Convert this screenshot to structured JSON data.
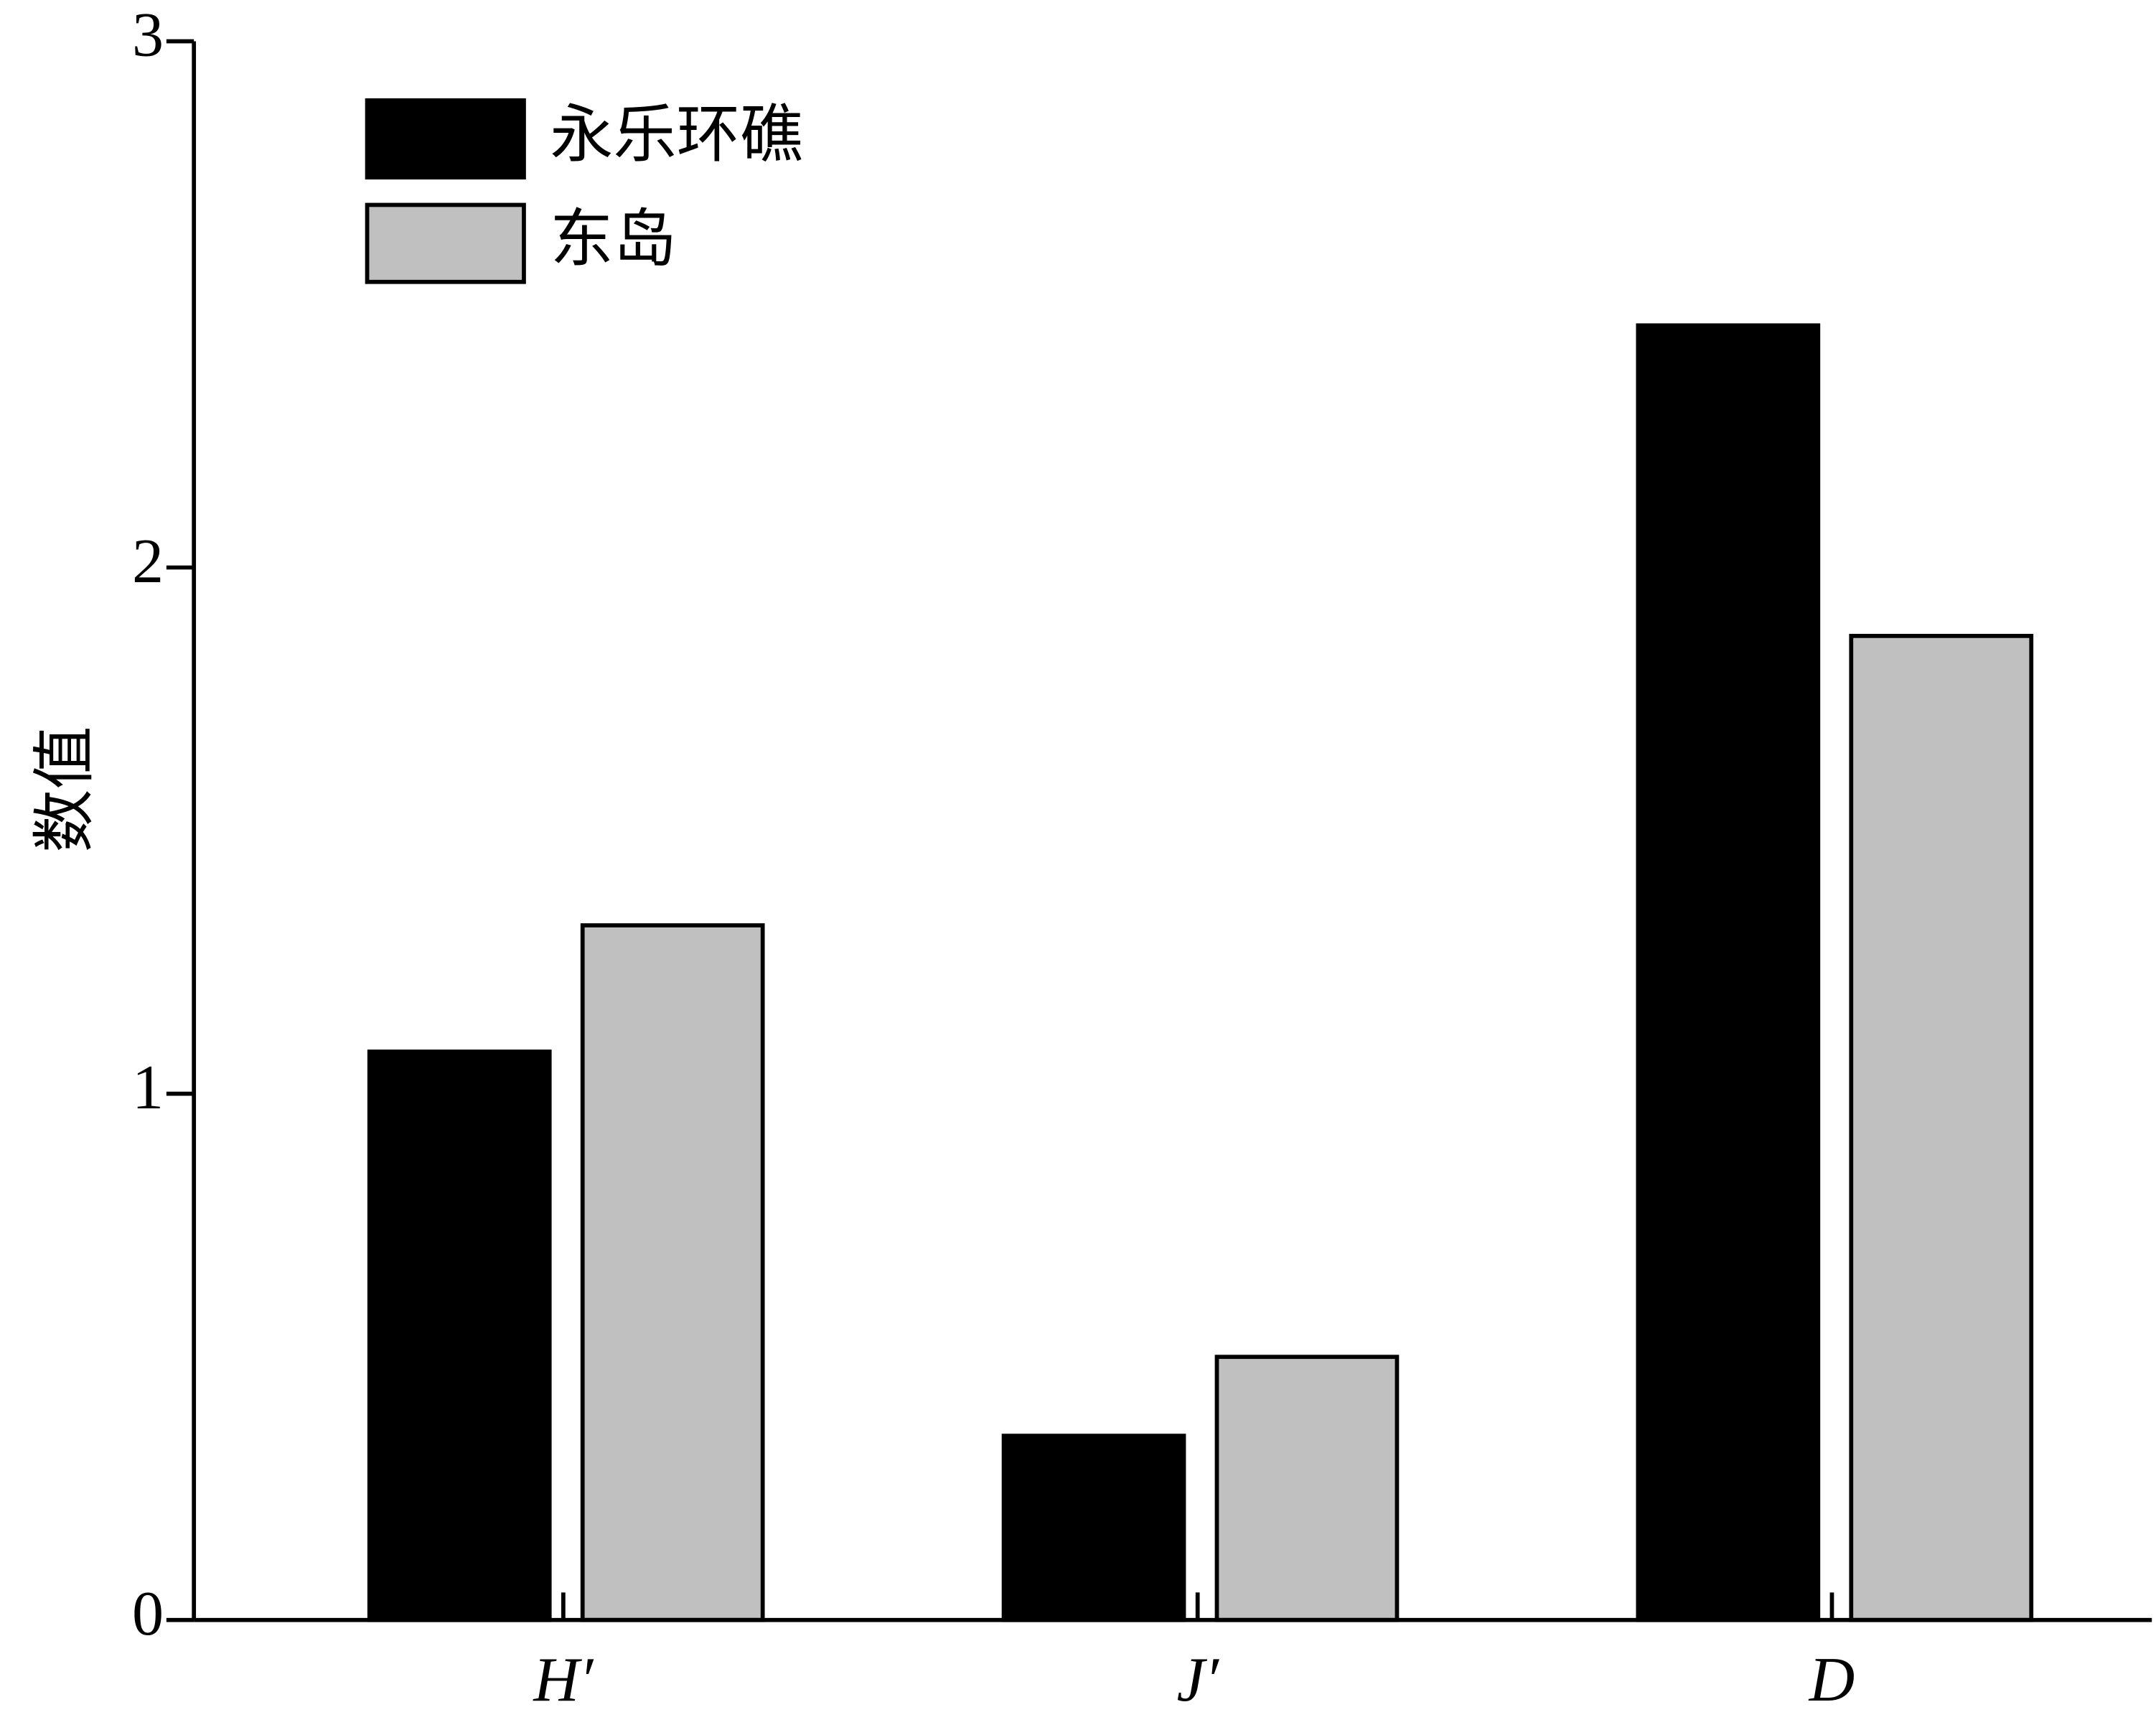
{
  "chart_data": {
    "type": "bar",
    "y_label": "数值",
    "categories": [
      "H′",
      "J′",
      "D"
    ],
    "series": [
      {
        "name": "永乐环礁",
        "color": "#000000",
        "values": [
          1.08,
          0.35,
          2.46
        ]
      },
      {
        "name": "东岛",
        "color": "#c0c0c0",
        "values": [
          1.32,
          0.5,
          1.87
        ]
      }
    ],
    "ylim": [
      0,
      3
    ],
    "yticks": [
      0,
      1,
      2,
      3
    ],
    "grid": false,
    "legend": "upper left"
  }
}
